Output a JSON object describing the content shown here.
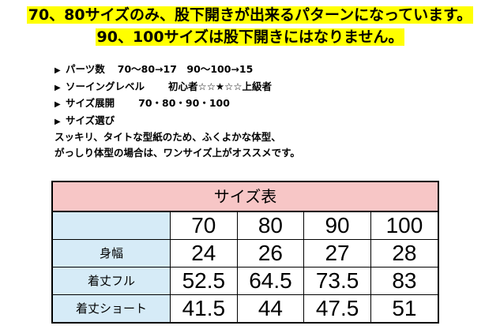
{
  "headline": {
    "line1": "70、80サイズのみ、股下開きが出来るパターンになっています。",
    "line2": "90、100サイズは股下開きにはなりません。"
  },
  "specs": {
    "bullet": "▶",
    "parts_label": "パーツ数",
    "parts_value": "70～80→17　90～100→15",
    "level_label": "ソーイングレベル",
    "level_value": "初心者☆☆★☆☆上級者",
    "sizes_label": "サイズ展開",
    "sizes_value": "70・80・90・100",
    "choose_label": "サイズ選び",
    "note_line1": "スッキリ、タイトな型紙のため、ふくよかな体型、",
    "note_line2": "がっしり体型の場合は、ワンサイズ上がオススメです。"
  },
  "size_table": {
    "title": "サイズ表",
    "columns": [
      "70",
      "80",
      "90",
      "100"
    ],
    "rows": [
      {
        "label": "身幅",
        "values": [
          "24",
          "26",
          "27",
          "28"
        ]
      },
      {
        "label": "着丈フル",
        "values": [
          "52.5",
          "64.5",
          "73.5",
          "83"
        ]
      },
      {
        "label": "着丈ショート",
        "values": [
          "41.5",
          "44",
          "47.5",
          "51"
        ]
      }
    ]
  },
  "colors": {
    "headline_highlight": "#ffff00",
    "table_title_bg": "#f7c6c6",
    "table_label_bg": "#d6ebf7"
  }
}
